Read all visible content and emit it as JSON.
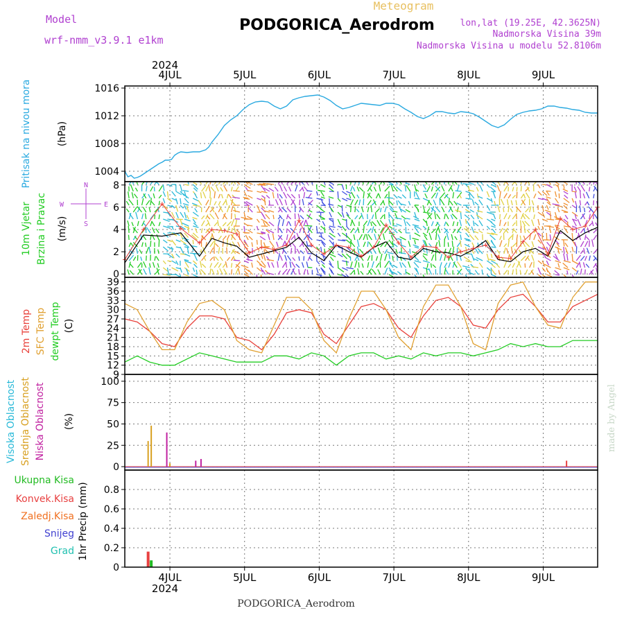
{
  "header": {
    "model_label": "Model",
    "model_name": "wrf-nmm_v3.9.1 e1km",
    "title": "Meteogram",
    "station": "PODGORICA_Aerodrom",
    "lonlat": "lon,lat (19.25E, 42.3625N)",
    "elevation": "Nadmorska Visina 39m",
    "model_elevation": "Nadmorska Visina u modelu 52.8106m",
    "footer_station": "PODGORICA_Aerodrom",
    "credit": "made by Angel"
  },
  "colors": {
    "pressure": "#29a9e0",
    "temp2m": "#e8403a",
    "sfc_temp": "#e0a030",
    "dewpt": "#22cc22",
    "wind_speed": "#000000",
    "gust": "#e8403a",
    "high_cloud": "#29b9d8",
    "mid_cloud": "#d8a020",
    "low_cloud": "#c020a0",
    "total_precip": "#22bb22",
    "conv_precip": "#e84040",
    "frozen": "#f07020",
    "snow": "#4040d0",
    "hail": "#20c0b0",
    "purple_text": "#b040d0"
  },
  "time_axis": {
    "year": "2024",
    "days": [
      "4JUL",
      "5JUL",
      "6JUL",
      "7JUL",
      "8JUL",
      "9JUL"
    ]
  },
  "chart_data": [
    {
      "type": "line",
      "panel": "pressure",
      "ylabel_main": "Pritisak na nivou mora",
      "ylabel_unit": "(hPa)",
      "ylim": [
        1002.5,
        1016.3
      ],
      "yticks": [
        "1004",
        "1008",
        "1012",
        "1016"
      ],
      "x_hours": [
        0,
        1,
        2,
        3,
        4,
        5,
        6,
        7,
        8,
        9,
        10,
        11,
        12,
        13,
        14,
        15,
        16,
        17,
        18,
        20,
        22,
        24,
        26,
        27,
        28,
        30,
        32,
        34,
        36,
        38,
        40,
        42,
        44,
        46,
        48,
        50,
        52,
        54,
        56,
        58,
        60,
        62,
        64,
        66,
        68,
        70,
        72,
        74,
        76,
        78,
        80,
        82,
        84,
        86,
        88,
        90,
        92,
        94,
        96,
        98,
        100,
        102,
        104,
        106,
        108,
        110,
        112,
        114,
        116,
        118,
        120,
        122,
        124,
        126,
        128,
        130,
        132,
        134,
        136,
        138,
        140,
        142,
        144,
        146,
        148,
        150,
        152
      ],
      "series": [
        {
          "values": [
            1004.0,
            1003.2,
            1003.4,
            1003.0,
            1003.1,
            1003.3,
            1003.6,
            1003.9,
            1004.2,
            1004.5,
            1004.8,
            1005.1,
            1005.3,
            1005.6,
            1005.6,
            1005.7,
            1006.3,
            1006.6,
            1006.8,
            1006.7,
            1006.8,
            1006.8,
            1007.1,
            1007.5,
            1008.2,
            1009.3,
            1010.6,
            1011.4,
            1012.0,
            1012.9,
            1013.6,
            1014.0,
            1014.1,
            1014.0,
            1013.4,
            1013.0,
            1013.4,
            1014.3,
            1014.6,
            1014.8,
            1014.9,
            1015.0,
            1014.7,
            1014.2,
            1013.5,
            1013.0,
            1013.2,
            1013.5,
            1013.8,
            1013.7,
            1013.6,
            1013.5,
            1013.8,
            1013.8,
            1013.6,
            1013.0,
            1012.5,
            1011.9,
            1011.6,
            1012.0,
            1012.6,
            1012.6,
            1012.4,
            1012.3,
            1012.6,
            1012.5,
            1012.3,
            1011.8,
            1011.2,
            1010.6,
            1010.3,
            1010.7,
            1011.5,
            1012.2,
            1012.5,
            1012.7,
            1012.8,
            1013.0,
            1013.4,
            1013.4,
            1013.2,
            1013.1,
            1012.9,
            1012.8,
            1012.5,
            1012.4,
            1012.4
          ]
        }
      ]
    },
    {
      "type": "line",
      "panel": "wind",
      "ylabel_main": "10m Vjetar",
      "ylabel_sub": "Brzina i Pravac",
      "ylabel_unit": "(m/s)",
      "compass": [
        "N",
        "E",
        "S",
        "W"
      ],
      "ylim": [
        -0.3,
        8.3
      ],
      "yticks": [
        "0",
        "2",
        "4",
        "6",
        "8"
      ],
      "x_hours": [
        0,
        6,
        12,
        18,
        24,
        28,
        32,
        36,
        40,
        44,
        48,
        52,
        56,
        60,
        64,
        68,
        72,
        76,
        80,
        84,
        88,
        92,
        96,
        100,
        104,
        108,
        112,
        116,
        120,
        124,
        128,
        132,
        136,
        140,
        144,
        148,
        152
      ],
      "series": [
        {
          "name": "speed",
          "values": [
            1.0,
            3.5,
            3.4,
            3.7,
            1.6,
            3.2,
            2.8,
            2.5,
            1.5,
            1.8,
            2.1,
            2.4,
            3.3,
            1.9,
            1.2,
            2.6,
            2.0,
            1.5,
            2.4,
            2.9,
            1.5,
            1.3,
            2.3,
            2.0,
            1.9,
            1.6,
            2.2,
            3.0,
            1.3,
            1.1,
            2.0,
            2.3,
            1.6,
            3.9,
            3.0,
            3.7,
            4.2
          ]
        },
        {
          "name": "gust",
          "values": [
            1.3,
            4.0,
            6.3,
            4.1,
            2.8,
            4.0,
            3.9,
            3.6,
            1.9,
            2.4,
            2.2,
            2.6,
            4.8,
            2.6,
            1.8,
            2.6,
            2.4,
            1.6,
            2.4,
            4.4,
            2.8,
            1.5,
            2.5,
            2.4,
            1.5,
            2.0,
            2.3,
            2.6,
            1.5,
            1.4,
            2.9,
            4.0,
            1.8,
            5.0,
            4.0,
            4.3,
            6.0
          ]
        }
      ]
    },
    {
      "type": "line",
      "panel": "temperature",
      "ylabel_lines": [
        "2m Temp",
        "SFC Temp",
        "dewpt Temp"
      ],
      "ylabel_unit": "(C)",
      "ylim": [
        9,
        40.5
      ],
      "yticks": [
        "9",
        "12",
        "15",
        "18",
        "21",
        "24",
        "27",
        "30",
        "33",
        "36",
        "39"
      ],
      "x_hours": [
        0,
        4,
        8,
        12,
        16,
        20,
        24,
        28,
        32,
        36,
        40,
        44,
        48,
        52,
        56,
        60,
        64,
        68,
        72,
        76,
        80,
        84,
        88,
        92,
        96,
        100,
        104,
        108,
        112,
        116,
        120,
        124,
        128,
        132,
        136,
        140,
        144,
        148,
        152
      ],
      "series": [
        {
          "name": "2m Temp",
          "values": [
            27,
            26,
            23,
            19,
            18,
            24,
            28,
            28,
            27,
            21,
            20,
            17,
            22,
            29,
            30,
            29,
            22,
            19,
            25,
            31,
            32,
            30,
            24,
            21,
            28,
            33,
            34,
            31,
            25,
            24,
            30,
            34,
            35,
            31,
            26,
            26,
            31,
            33,
            35
          ]
        },
        {
          "name": "SFC Temp",
          "values": [
            32,
            30,
            23,
            17,
            17,
            26,
            32,
            33,
            30,
            20,
            17,
            16,
            25,
            34,
            34,
            30,
            20,
            16,
            27,
            36,
            36,
            30,
            21,
            17,
            31,
            38,
            38,
            31,
            19,
            17,
            32,
            38,
            39,
            31,
            25,
            24,
            34,
            39,
            39
          ]
        },
        {
          "name": "dewpt Temp",
          "values": [
            13,
            15,
            13,
            12,
            12,
            14,
            16,
            15,
            14,
            13,
            13,
            13,
            15,
            15,
            14,
            16,
            15,
            12,
            15,
            16,
            16,
            14,
            15,
            14,
            16,
            15,
            16,
            16,
            15,
            16,
            17,
            19,
            18,
            19,
            18,
            18,
            20,
            20,
            20
          ]
        }
      ]
    },
    {
      "type": "bar",
      "panel": "cloud",
      "ylabel_lines": [
        "Visoka Oblacnost",
        "Srednja Oblacnost",
        "Niska Oblacnost"
      ],
      "ylabel_unit": "(%)",
      "ylim": [
        -4,
        108
      ],
      "yticks": [
        "0",
        "25",
        "50",
        "75",
        "100"
      ],
      "bars": [
        {
          "x_hour": 7.5,
          "series": "mid",
          "value": 30
        },
        {
          "x_hour": 8.5,
          "series": "mid",
          "value": 48
        },
        {
          "x_hour": 13.5,
          "series": "low",
          "value": 40
        },
        {
          "x_hour": 14.5,
          "series": "mid",
          "value": 4
        },
        {
          "x_hour": 22.8,
          "series": "low",
          "value": 7
        },
        {
          "x_hour": 24.5,
          "series": "low",
          "value": 9
        },
        {
          "x_hour": 142.0,
          "series": "conv",
          "value": 7
        }
      ]
    },
    {
      "type": "bar",
      "panel": "precip",
      "ylabel_lines": [
        "Ukupna Kisa",
        "Konvek.Kisa",
        "Zaledj.Kisa",
        "Snijeg",
        "Grad"
      ],
      "ylabel_unit": "1hr Precip (mm)",
      "ylim": [
        0,
        1.0
      ],
      "yticks": [
        "0",
        "0.2",
        "0.4",
        "0.6",
        "0.8"
      ],
      "bars": [
        {
          "x_hour": 7.5,
          "series": "conv",
          "value": 0.16
        },
        {
          "x_hour": 8.5,
          "series": "total",
          "value": 0.07
        }
      ]
    }
  ]
}
